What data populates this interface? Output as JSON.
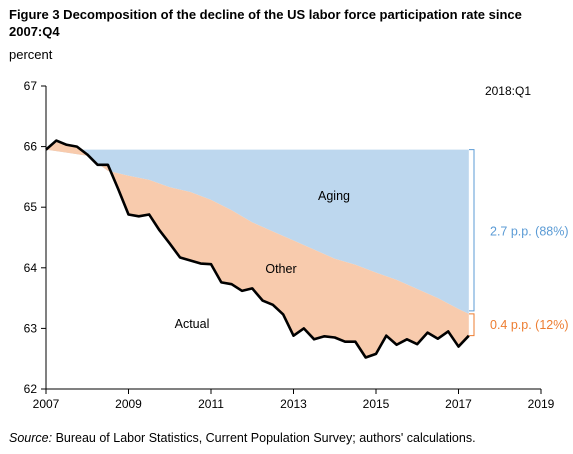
{
  "figure": {
    "title": "Figure 3 Decomposition of the decline of the US labor force participation rate since 2007:Q4",
    "unit_label": "percent",
    "source_label": "Source:",
    "source_text": " Bureau of Labor Statistics, Current Population Survey; authors' calculations."
  },
  "chart_data": {
    "type": "area",
    "xlim": [
      2007,
      2019
    ],
    "ylim": [
      62,
      67
    ],
    "x_ticks": [
      2007,
      2009,
      2011,
      2013,
      2015,
      2017,
      2019
    ],
    "y_ticks": [
      62,
      63,
      64,
      65,
      66,
      67
    ],
    "x_tick_labels": [
      "2007",
      "2009",
      "2011",
      "2013",
      "2015",
      "2017",
      "2019"
    ],
    "y_tick_labels": [
      "62",
      "63",
      "64",
      "65",
      "66",
      "67"
    ],
    "grid": false,
    "baseline": 65.95,
    "date_label": "2018:Q1",
    "colors": {
      "aging": "#bdd7ee",
      "other": "#f8cbad",
      "actual": "#000000",
      "aging_bracket": "#5b9bd5",
      "other_bracket": "#ed7d31"
    },
    "series": [
      {
        "name": "Actual",
        "x": [
          2007.0,
          2007.25,
          2007.5,
          2007.75,
          2008.0,
          2008.25,
          2008.5,
          2008.75,
          2009.0,
          2009.25,
          2009.5,
          2009.75,
          2010.0,
          2010.25,
          2010.5,
          2010.75,
          2011.0,
          2011.25,
          2011.5,
          2011.75,
          2012.0,
          2012.25,
          2012.5,
          2012.75,
          2013.0,
          2013.25,
          2013.5,
          2013.75,
          2014.0,
          2014.25,
          2014.5,
          2014.75,
          2015.0,
          2015.25,
          2015.5,
          2015.75,
          2016.0,
          2016.25,
          2016.5,
          2016.75,
          2017.0,
          2017.25
        ],
        "values": [
          65.95,
          66.1,
          66.03,
          66.0,
          65.87,
          65.7,
          65.7,
          65.3,
          64.88,
          64.85,
          64.88,
          64.62,
          64.4,
          64.17,
          64.12,
          64.07,
          64.06,
          63.76,
          63.73,
          63.62,
          63.66,
          63.46,
          63.39,
          63.23,
          62.88,
          63.0,
          62.82,
          62.87,
          62.85,
          62.78,
          62.78,
          62.52,
          62.58,
          62.88,
          62.73,
          62.82,
          62.74,
          62.93,
          62.83,
          62.95,
          62.7,
          62.88
        ]
      },
      {
        "name": "Aging",
        "x": [
          2007.0,
          2007.5,
          2008.0,
          2008.5,
          2009.0,
          2009.5,
          2010.0,
          2010.5,
          2011.0,
          2011.5,
          2012.0,
          2012.5,
          2013.0,
          2013.5,
          2014.0,
          2014.5,
          2015.0,
          2015.5,
          2016.0,
          2016.5,
          2017.0,
          2017.25
        ],
        "values": [
          65.95,
          65.9,
          65.85,
          65.6,
          65.52,
          65.45,
          65.33,
          65.25,
          65.12,
          64.95,
          64.75,
          64.6,
          64.45,
          64.3,
          64.15,
          64.05,
          63.92,
          63.8,
          63.65,
          63.5,
          63.32,
          63.24
        ]
      }
    ],
    "annotations": {
      "aging_label": "Aging",
      "other_label": "Other",
      "actual_label": "Actual",
      "aging_bracket": "2.7 p.p. (88%)",
      "other_bracket": "0.4 p.p. (12%)"
    }
  }
}
